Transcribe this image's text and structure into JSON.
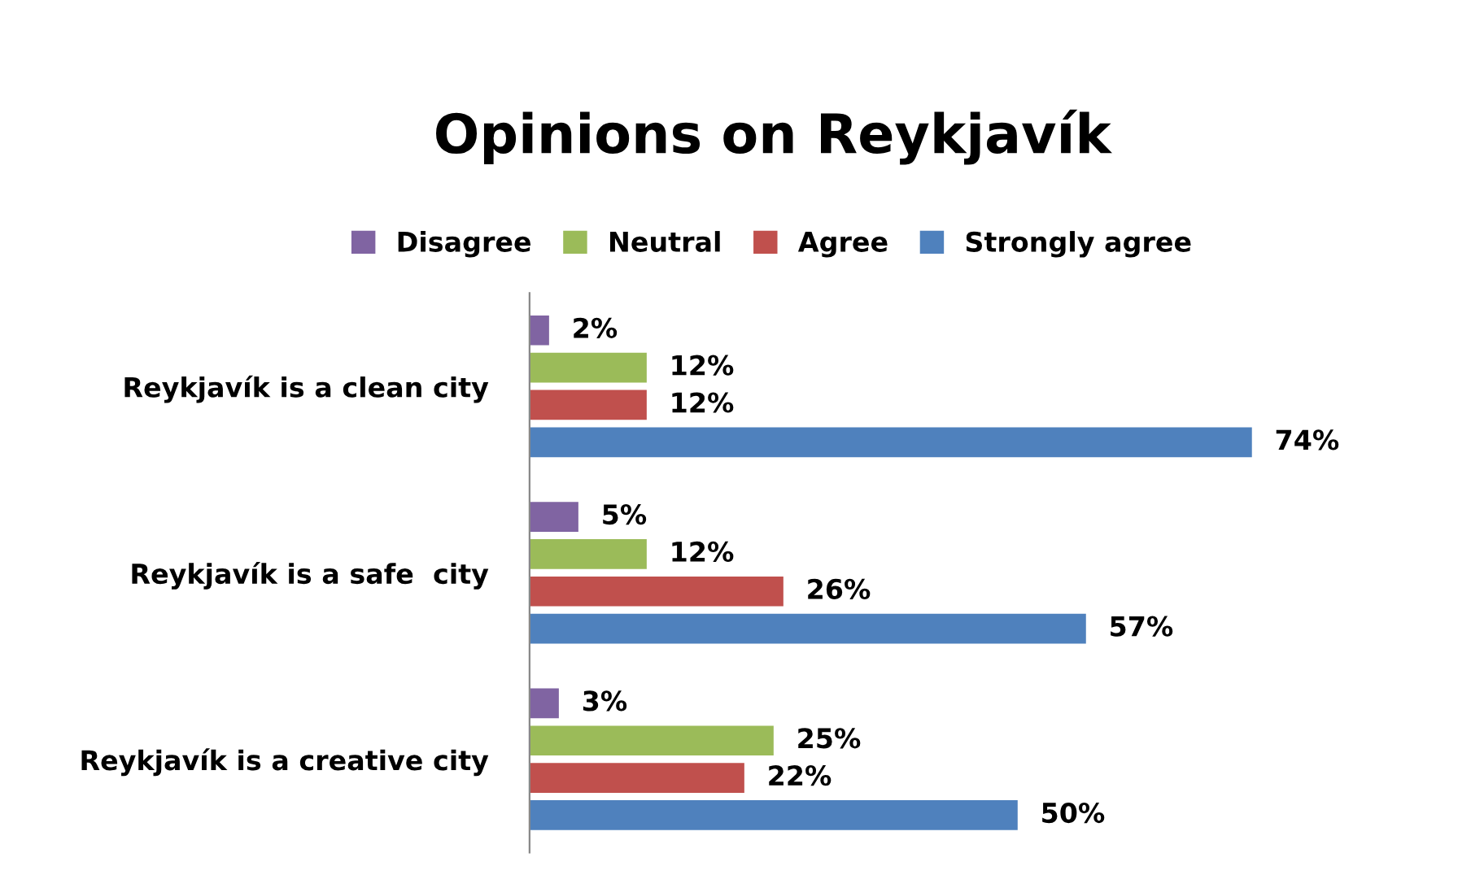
{
  "chart_data": {
    "type": "bar",
    "orientation": "horizontal",
    "title": "Opinions on Reykjavík",
    "categories": [
      "Reykjavík is a clean city",
      "Reykjavík is a safe  city",
      "Reykjavík is a creative city"
    ],
    "series": [
      {
        "name": "Disagree",
        "color": "#8064a2",
        "values": [
          2,
          5,
          3
        ],
        "value_labels": [
          "2%",
          "5%",
          "3%"
        ]
      },
      {
        "name": "Neutral",
        "color": "#9bbb59",
        "values": [
          12,
          12,
          25
        ],
        "value_labels": [
          "12%",
          "12%",
          "25%"
        ]
      },
      {
        "name": "Agree",
        "color": "#c0504d",
        "values": [
          12,
          26,
          22
        ],
        "value_labels": [
          "12%",
          "26%",
          "22%"
        ]
      },
      {
        "name": "Strongly agree",
        "color": "#4f81bd",
        "values": [
          74,
          57,
          50
        ],
        "value_labels": [
          "74%",
          "57%",
          "50%"
        ]
      }
    ],
    "legend": "top",
    "grid": false,
    "tick_labels": "y"
  }
}
